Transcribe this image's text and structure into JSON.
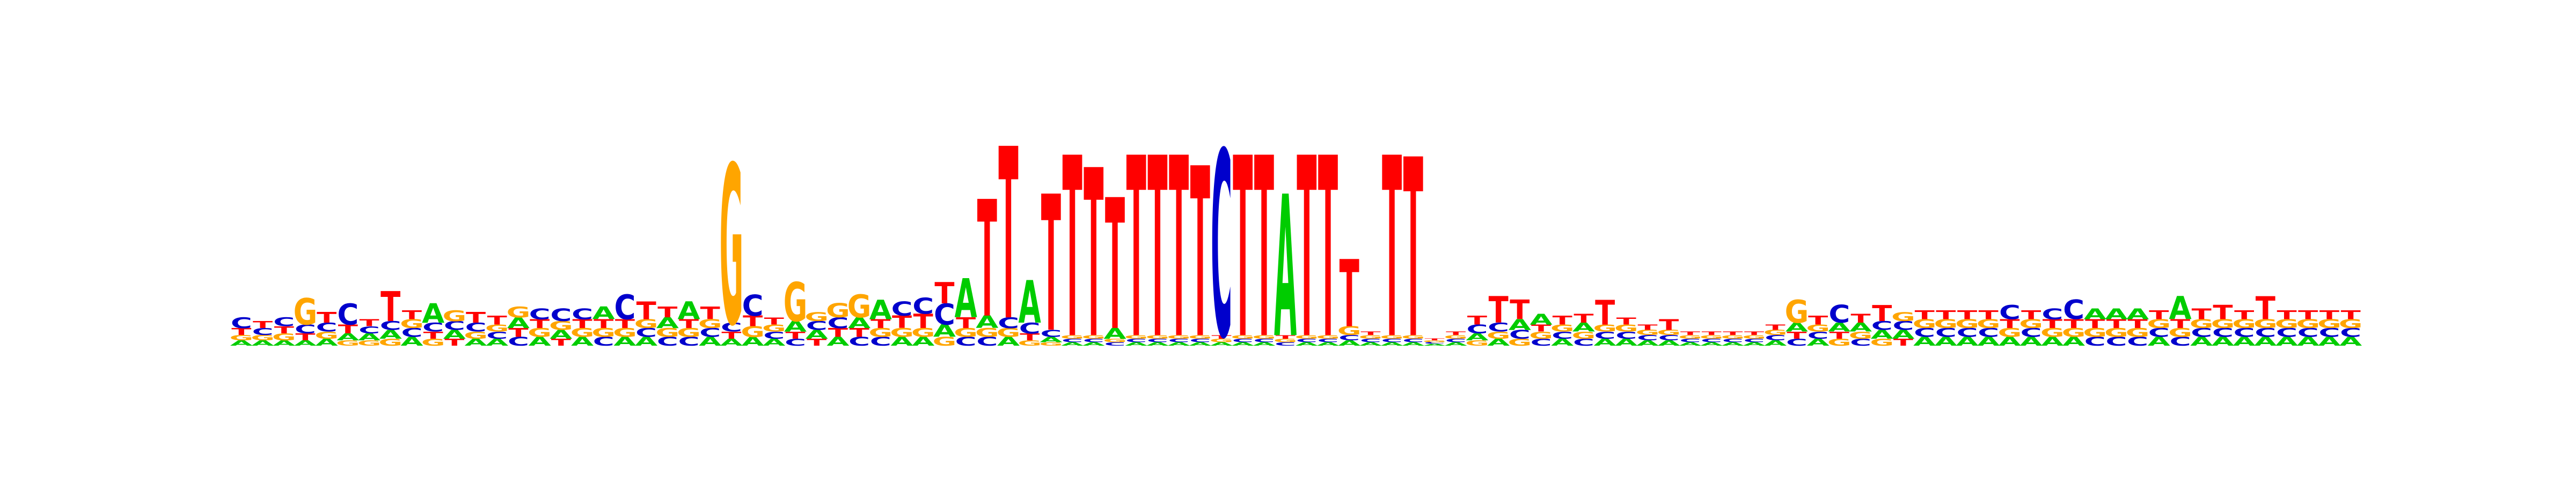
{
  "chart_data": {
    "type": "sequence-logo",
    "alphabet": [
      "A",
      "C",
      "G",
      "T"
    ],
    "colors": {
      "A": "#00cc00",
      "C": "#0000cc",
      "G": "#ffa500",
      "T": "#ff0000"
    },
    "ylim": [
      0,
      2
    ],
    "positions": [
      {
        "A": 0.03,
        "C": 0.06,
        "G": 0.03,
        "T": 0.04
      },
      {
        "A": 0.03,
        "C": 0.04,
        "G": 0.03,
        "T": 0.04
      },
      {
        "A": 0.03,
        "C": 0.05,
        "G": 0.04,
        "T": 0.04
      },
      {
        "A": 0.03,
        "C": 0.05,
        "G": 0.15,
        "T": 0.04
      },
      {
        "A": 0.04,
        "C": 0.05,
        "G": 0.04,
        "T": 0.06
      },
      {
        "A": 0.04,
        "C": 0.12,
        "G": 0.03,
        "T": 0.05
      },
      {
        "A": 0.04,
        "C": 0.04,
        "G": 0.03,
        "T": 0.04
      },
      {
        "A": 0.05,
        "C": 0.05,
        "G": 0.04,
        "T": 0.17
      },
      {
        "A": 0.05,
        "C": 0.05,
        "G": 0.05,
        "T": 0.05
      },
      {
        "A": 0.11,
        "C": 0.05,
        "G": 0.04,
        "T": 0.04
      },
      {
        "A": 0.05,
        "C": 0.05,
        "G": 0.06,
        "T": 0.04
      },
      {
        "A": 0.04,
        "C": 0.05,
        "G": 0.04,
        "T": 0.06
      },
      {
        "A": 0.04,
        "C": 0.04,
        "G": 0.04,
        "T": 0.05
      },
      {
        "A": 0.06,
        "C": 0.05,
        "G": 0.06,
        "T": 0.05
      },
      {
        "A": 0.05,
        "C": 0.06,
        "G": 0.05,
        "T": 0.05
      },
      {
        "A": 0.05,
        "C": 0.07,
        "G": 0.05,
        "T": 0.04
      },
      {
        "A": 0.05,
        "C": 0.06,
        "G": 0.05,
        "T": 0.05
      },
      {
        "A": 0.07,
        "C": 0.05,
        "G": 0.05,
        "T": 0.05
      },
      {
        "A": 0.05,
        "C": 0.14,
        "G": 0.05,
        "T": 0.05
      },
      {
        "A": 0.05,
        "C": 0.05,
        "G": 0.05,
        "T": 0.1
      },
      {
        "A": 0.06,
        "C": 0.05,
        "G": 0.05,
        "T": 0.06
      },
      {
        "A": 0.1,
        "C": 0.05,
        "G": 0.05,
        "T": 0.05
      },
      {
        "A": 0.05,
        "C": 0.05,
        "G": 0.05,
        "T": 0.07
      },
      {
        "A": 0.04,
        "C": 0.05,
        "G": 0.9,
        "T": 0.04
      },
      {
        "A": 0.05,
        "C": 0.12,
        "G": 0.06,
        "T": 0.06
      },
      {
        "A": 0.04,
        "C": 0.04,
        "G": 0.04,
        "T": 0.04
      },
      {
        "A": 0.06,
        "C": 0.04,
        "G": 0.22,
        "T": 0.04
      },
      {
        "A": 0.05,
        "C": 0.05,
        "G": 0.05,
        "T": 0.04
      },
      {
        "A": 0.05,
        "C": 0.06,
        "G": 0.08,
        "T": 0.05
      },
      {
        "A": 0.06,
        "C": 0.05,
        "G": 0.13,
        "T": 0.05
      },
      {
        "A": 0.11,
        "C": 0.05,
        "G": 0.05,
        "T": 0.05
      },
      {
        "A": 0.05,
        "C": 0.08,
        "G": 0.05,
        "T": 0.07
      },
      {
        "A": 0.05,
        "C": 0.09,
        "G": 0.05,
        "T": 0.08
      },
      {
        "A": 0.07,
        "C": 0.12,
        "G": 0.05,
        "T": 0.12
      },
      {
        "A": 0.22,
        "C": 0.05,
        "G": 0.05,
        "T": 0.06
      },
      {
        "A": 0.07,
        "C": 0.05,
        "G": 0.05,
        "T": 0.66
      },
      {
        "A": 0.05,
        "C": 0.06,
        "G": 0.05,
        "T": 0.97
      },
      {
        "A": 0.24,
        "C": 0.06,
        "G": 0.03,
        "T": 0.04
      },
      {
        "A": 0.03,
        "C": 0.04,
        "G": 0.02,
        "T": 0.77
      },
      {
        "A": 0.02,
        "C": 0.02,
        "G": 0.02,
        "T": 1.02
      },
      {
        "A": 0.02,
        "C": 0.02,
        "G": 0.02,
        "T": 0.95
      },
      {
        "A": 0.06,
        "C": 0.02,
        "G": 0.02,
        "T": 0.74
      },
      {
        "A": 0.02,
        "C": 0.02,
        "G": 0.02,
        "T": 1.02
      },
      {
        "A": 0.02,
        "C": 0.02,
        "G": 0.02,
        "T": 1.02
      },
      {
        "A": 0.02,
        "C": 0.02,
        "G": 0.02,
        "T": 1.02
      },
      {
        "A": 0.02,
        "C": 0.02,
        "G": 0.02,
        "T": 0.96
      },
      {
        "A": 0.02,
        "C": 1.05,
        "G": 0.02,
        "T": 0.02
      },
      {
        "A": 0.02,
        "C": 0.02,
        "G": 0.02,
        "T": 1.02
      },
      {
        "A": 0.02,
        "C": 0.02,
        "G": 0.02,
        "T": 1.02
      },
      {
        "A": 0.8,
        "C": 0.02,
        "G": 0.02,
        "T": 0.02
      },
      {
        "A": 0.02,
        "C": 0.02,
        "G": 0.02,
        "T": 1.02
      },
      {
        "A": 0.02,
        "C": 0.02,
        "G": 0.02,
        "T": 1.02
      },
      {
        "A": 0.03,
        "C": 0.03,
        "G": 0.05,
        "T": 0.38
      },
      {
        "A": 0.02,
        "C": 0.02,
        "G": 0.02,
        "T": 0.02
      },
      {
        "A": 0.02,
        "C": 0.02,
        "G": 0.02,
        "T": 1.02
      },
      {
        "A": 0.02,
        "C": 0.02,
        "G": 0.02,
        "T": 1.01
      },
      {
        "A": 0.01,
        "C": 0.01,
        "G": 0.01,
        "T": 0.01
      },
      {
        "A": 0.02,
        "C": 0.02,
        "G": 0.02,
        "T": 0.02
      },
      {
        "A": 0.04,
        "C": 0.05,
        "G": 0.03,
        "T": 0.05
      },
      {
        "A": 0.04,
        "C": 0.05,
        "G": 0.04,
        "T": 0.15
      },
      {
        "A": 0.06,
        "C": 0.05,
        "G": 0.04,
        "T": 0.11
      },
      {
        "A": 0.06,
        "C": 0.04,
        "G": 0.04,
        "T": 0.04
      },
      {
        "A": 0.04,
        "C": 0.04,
        "G": 0.04,
        "T": 0.05
      },
      {
        "A": 0.05,
        "C": 0.04,
        "G": 0.04,
        "T": 0.05
      },
      {
        "A": 0.04,
        "C": 0.04,
        "G": 0.04,
        "T": 0.14
      },
      {
        "A": 0.04,
        "C": 0.04,
        "G": 0.04,
        "T": 0.04
      },
      {
        "A": 0.03,
        "C": 0.03,
        "G": 0.03,
        "T": 0.03
      },
      {
        "A": 0.03,
        "C": 0.03,
        "G": 0.03,
        "T": 0.06
      },
      {
        "A": 0.02,
        "C": 0.02,
        "G": 0.02,
        "T": 0.02
      },
      {
        "A": 0.02,
        "C": 0.02,
        "G": 0.02,
        "T": 0.02
      },
      {
        "A": 0.02,
        "C": 0.02,
        "G": 0.02,
        "T": 0.02
      },
      {
        "A": 0.02,
        "C": 0.02,
        "G": 0.02,
        "T": 0.02
      },
      {
        "A": 0.03,
        "C": 0.03,
        "G": 0.03,
        "T": 0.03
      },
      {
        "A": 0.05,
        "C": 0.04,
        "G": 0.13,
        "T": 0.04
      },
      {
        "A": 0.04,
        "C": 0.04,
        "G": 0.04,
        "T": 0.05
      },
      {
        "A": 0.05,
        "C": 0.1,
        "G": 0.04,
        "T": 0.04
      },
      {
        "A": 0.05,
        "C": 0.04,
        "G": 0.04,
        "T": 0.05
      },
      {
        "A": 0.05,
        "C": 0.05,
        "G": 0.04,
        "T": 0.09
      },
      {
        "A": 0.05,
        "C": 0.05,
        "G": 0.05,
        "T": 0.04
      },
      {
        "A": 0.05,
        "C": 0.05,
        "G": 0.05,
        "T": 0.05
      },
      {
        "A": 0.05,
        "C": 0.05,
        "G": 0.05,
        "T": 0.05
      },
      {
        "A": 0.05,
        "C": 0.05,
        "G": 0.05,
        "T": 0.05
      },
      {
        "A": 0.05,
        "C": 0.05,
        "G": 0.05,
        "T": 0.05
      },
      {
        "A": 0.05,
        "C": 0.08,
        "G": 0.05,
        "T": 0.05
      },
      {
        "A": 0.05,
        "C": 0.05,
        "G": 0.05,
        "T": 0.05
      },
      {
        "A": 0.05,
        "C": 0.06,
        "G": 0.05,
        "T": 0.05
      },
      {
        "A": 0.05,
        "C": 0.11,
        "G": 0.05,
        "T": 0.05
      },
      {
        "A": 0.06,
        "C": 0.05,
        "G": 0.05,
        "T": 0.05
      },
      {
        "A": 0.06,
        "C": 0.05,
        "G": 0.05,
        "T": 0.05
      },
      {
        "A": 0.06,
        "C": 0.05,
        "G": 0.05,
        "T": 0.05
      },
      {
        "A": 0.05,
        "C": 0.05,
        "G": 0.05,
        "T": 0.05
      },
      {
        "A": 0.13,
        "C": 0.05,
        "G": 0.05,
        "T": 0.05
      },
      {
        "A": 0.05,
        "C": 0.05,
        "G": 0.05,
        "T": 0.06
      },
      {
        "A": 0.05,
        "C": 0.05,
        "G": 0.05,
        "T": 0.08
      },
      {
        "A": 0.05,
        "C": 0.05,
        "G": 0.05,
        "T": 0.05
      },
      {
        "A": 0.05,
        "C": 0.05,
        "G": 0.05,
        "T": 0.13
      },
      {
        "A": 0.05,
        "C": 0.05,
        "G": 0.05,
        "T": 0.05
      },
      {
        "A": 0.05,
        "C": 0.05,
        "G": 0.05,
        "T": 0.05
      },
      {
        "A": 0.05,
        "C": 0.05,
        "G": 0.05,
        "T": 0.05
      },
      {
        "A": 0.05,
        "C": 0.05,
        "G": 0.05,
        "T": 0.05
      }
    ]
  }
}
